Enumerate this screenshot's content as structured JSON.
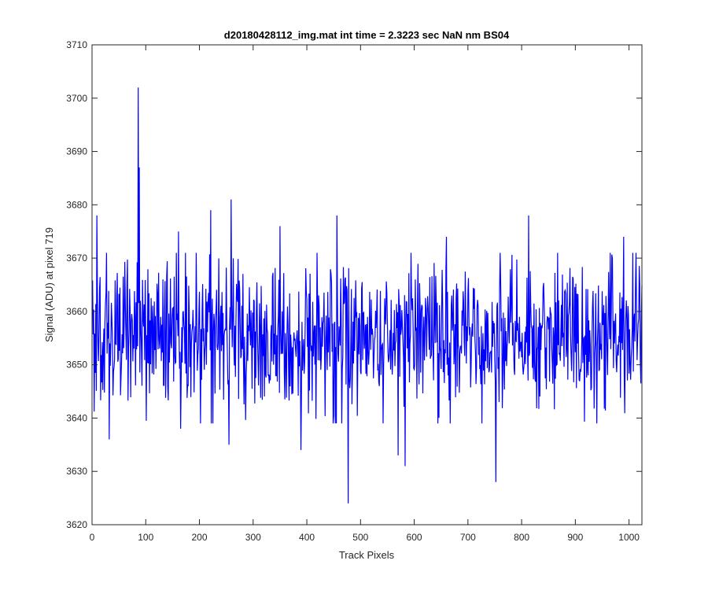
{
  "chart_data": {
    "type": "line",
    "title": "d20180428112_img.mat int time = 2.3223 sec  NaN nm BS04",
    "xlabel": "Track Pixels",
    "ylabel": "Signal (ADU) at pixel 719",
    "xlim": [
      0,
      1024
    ],
    "ylim": [
      3620,
      3710
    ],
    "xticks": [
      0,
      100,
      200,
      300,
      400,
      500,
      600,
      700,
      800,
      900,
      1000
    ],
    "yticks": [
      3620,
      3630,
      3640,
      3650,
      3660,
      3670,
      3680,
      3690,
      3700,
      3710
    ],
    "grid": false,
    "legend": "none",
    "series": [
      {
        "color": "#0000ff",
        "x_start": 1,
        "x_step": 1,
        "mean": 3655,
        "std": 7,
        "n_points": 1024,
        "notable_points": [
          {
            "x": 9,
            "y": 3678
          },
          {
            "x": 32,
            "y": 3636
          },
          {
            "x": 86,
            "y": 3702
          },
          {
            "x": 88,
            "y": 3687
          },
          {
            "x": 161,
            "y": 3675
          },
          {
            "x": 165,
            "y": 3638
          },
          {
            "x": 221,
            "y": 3679
          },
          {
            "x": 255,
            "y": 3635
          },
          {
            "x": 259,
            "y": 3681
          },
          {
            "x": 350,
            "y": 3676
          },
          {
            "x": 389,
            "y": 3634
          },
          {
            "x": 456,
            "y": 3678
          },
          {
            "x": 477,
            "y": 3624
          },
          {
            "x": 570,
            "y": 3633
          },
          {
            "x": 583,
            "y": 3631
          },
          {
            "x": 660,
            "y": 3674
          },
          {
            "x": 752,
            "y": 3628
          },
          {
            "x": 758,
            "y": 3643
          },
          {
            "x": 813,
            "y": 3678
          },
          {
            "x": 990,
            "y": 3674
          },
          {
            "x": 1020,
            "y": 3665
          }
        ]
      }
    ]
  }
}
